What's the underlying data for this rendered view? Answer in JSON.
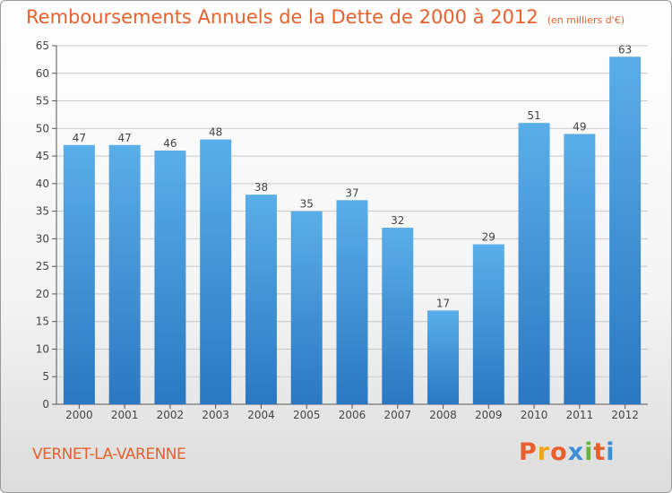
{
  "title": "Remboursements Annuels de la Dette de 2000 à 2012",
  "subtitle": "(en milliers d'€)",
  "commune": "VERNET-LA-VARENNE",
  "logo": {
    "letters": [
      "P",
      "r",
      "o",
      "x",
      "i",
      "t",
      "i"
    ],
    "colors": [
      "#e8612c",
      "#f2a51a",
      "#e8612c",
      "#3b8fd4",
      "#6cb33e",
      "#e8612c",
      "#3b8fd4"
    ]
  },
  "colors": {
    "bar_light": "#5aaee8",
    "bar_dark": "#2a78c2",
    "accent": "#e8612c"
  },
  "chart_data": {
    "type": "bar",
    "categories": [
      "2000",
      "2001",
      "2002",
      "2003",
      "2004",
      "2005",
      "2006",
      "2007",
      "2008",
      "2009",
      "2010",
      "2011",
      "2012"
    ],
    "values": [
      47,
      47,
      46,
      48,
      38,
      35,
      37,
      32,
      17,
      29,
      51,
      49,
      63
    ],
    "ylim": [
      0,
      65
    ],
    "yticks": [
      0,
      5,
      10,
      15,
      20,
      25,
      30,
      35,
      40,
      45,
      50,
      55,
      60,
      65
    ],
    "grid": true,
    "legend": "none"
  }
}
